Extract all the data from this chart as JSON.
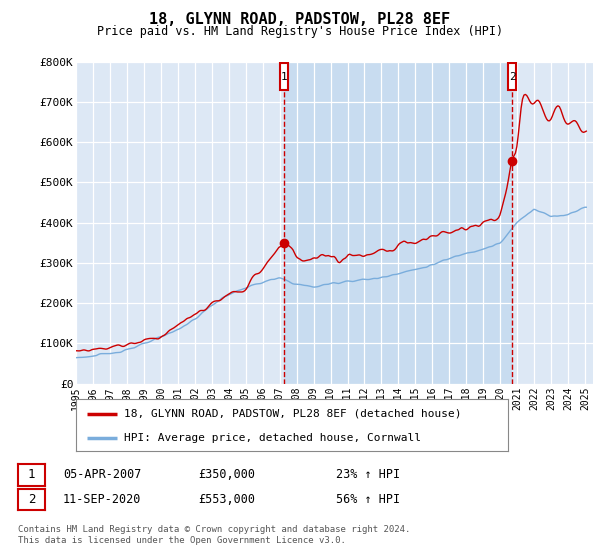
{
  "title": "18, GLYNN ROAD, PADSTOW, PL28 8EF",
  "subtitle": "Price paid vs. HM Land Registry's House Price Index (HPI)",
  "legend_line1": "18, GLYNN ROAD, PADSTOW, PL28 8EF (detached house)",
  "legend_line2": "HPI: Average price, detached house, Cornwall",
  "annotation1_date": "05-APR-2007",
  "annotation1_price": "£350,000",
  "annotation1_hpi": "23% ↑ HPI",
  "annotation1_year": 2007.27,
  "annotation1_value": 350000,
  "annotation2_date": "11-SEP-2020",
  "annotation2_price": "£553,000",
  "annotation2_hpi": "56% ↑ HPI",
  "annotation2_year": 2020.7,
  "annotation2_value": 553000,
  "hpi_color": "#7aaddc",
  "price_color": "#cc0000",
  "plot_bg_color": "#dde8f5",
  "highlight_bg_color": "#c8dcf0",
  "ylim": [
    0,
    800000
  ],
  "yticks": [
    0,
    100000,
    200000,
    300000,
    400000,
    500000,
    600000,
    700000,
    800000
  ],
  "ytick_labels": [
    "£0",
    "£100K",
    "£200K",
    "£300K",
    "£400K",
    "£500K",
    "£600K",
    "£700K",
    "£800K"
  ],
  "footer": "Contains HM Land Registry data © Crown copyright and database right 2024.\nThis data is licensed under the Open Government Licence v3.0."
}
